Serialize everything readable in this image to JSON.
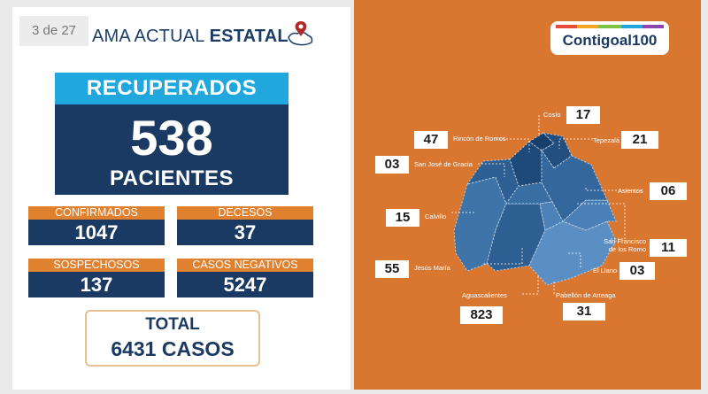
{
  "slide_counter": "3 de 27",
  "header": {
    "title_regular": "AMA ACTUAL ",
    "title_bold": "ESTATAL"
  },
  "recovered": {
    "label": "RECUPERADOS",
    "value": "538",
    "unit": "PACIENTES"
  },
  "stats": [
    {
      "label": "CONFIRMADOS",
      "value": "1047"
    },
    {
      "label": "DECESOS",
      "value": "37"
    },
    {
      "label": "SOSPECHOSOS",
      "value": "137"
    },
    {
      "label": "CASOS NEGATIVOS",
      "value": "5247"
    }
  ],
  "total": {
    "label": "TOTAL",
    "value": "6431 CASOS"
  },
  "logo": {
    "text": "Contigoal100"
  },
  "municipalities": [
    {
      "name": "Cosío",
      "value": "17"
    },
    {
      "name": "Rincón de Romos",
      "value": "47"
    },
    {
      "name": "Tepezalá",
      "value": "21"
    },
    {
      "name": "San José de Gracia",
      "value": "03"
    },
    {
      "name": "Asientos",
      "value": "06"
    },
    {
      "name": "Calvillo",
      "value": "15"
    },
    {
      "name": "San Francisco de los Romo",
      "value": "11"
    },
    {
      "name": "Jesús María",
      "value": "55"
    },
    {
      "name": "El Llano",
      "value": "03"
    },
    {
      "name": "Aguascalientes",
      "value": "823"
    },
    {
      "name": "Pabellón de Arteaga",
      "value": "31"
    }
  ],
  "colors": {
    "navy": "#1a3a63",
    "blue": "#1fa7de",
    "orange": "#e0812f",
    "panel_orange": "#d9762f"
  }
}
